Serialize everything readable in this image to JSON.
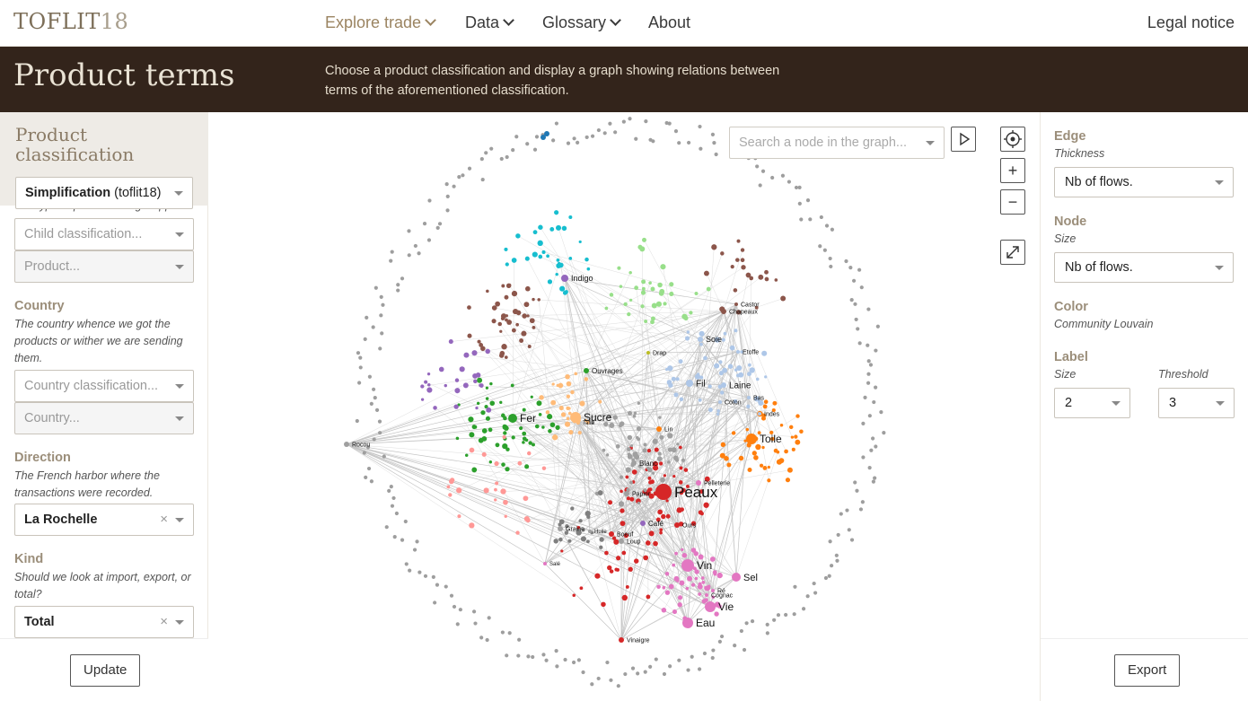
{
  "header": {
    "logo_text": "TOFLIT",
    "logo_num": "18",
    "nav": [
      {
        "label": "Explore trade",
        "dropdown": true,
        "active": true
      },
      {
        "label": "Data",
        "dropdown": true
      },
      {
        "label": "Glossary",
        "dropdown": true
      },
      {
        "label": "About",
        "dropdown": false
      }
    ],
    "legal": "Legal notice"
  },
  "banner": {
    "title": "Product terms",
    "description": "Choose a product classification and display a graph showing relations between terms of the aforementioned classification."
  },
  "left_panel": {
    "title": "Product classification",
    "classification_value": "Simplification",
    "classification_suffix": "(toflit18)",
    "product_hint": "The type of product being shipped.",
    "child_classification_placeholder": "Child classification...",
    "product_placeholder": "Product...",
    "country_label": "Country",
    "country_hint": "The country whence we got the products or wither we are sending them.",
    "country_classification_placeholder": "Country classification...",
    "country_placeholder": "Country...",
    "direction_label": "Direction",
    "direction_hint": "The French harbor where the transactions were recorded.",
    "direction_value": "La Rochelle",
    "kind_label": "Kind",
    "kind_hint": "Should we look at import, export, or total?",
    "kind_value": "Total",
    "clear_symbol": "×",
    "update_button": "Update"
  },
  "graph": {
    "search_placeholder": "Search a node in the graph...",
    "play_icon": "play-icon",
    "center_icon": "target-icon",
    "zoom_in": "+",
    "zoom_out": "−",
    "fullscreen_icon": "expand-icon",
    "colors": {
      "grey": "#a0a0a0",
      "red": "#d62728",
      "orange": "#ff7f0e",
      "green": "#2ca02c",
      "brown": "#8c564b",
      "pink": "#e377c2",
      "lightblue": "#aec7e8",
      "purple": "#9467bd",
      "cyan": "#17becf",
      "olive": "#bcbd22",
      "peach": "#ffbb78",
      "lightpink": "#ff9896",
      "darkgrey": "#7f7f7f",
      "lightgreen": "#98df8a",
      "blue": "#1f77b4"
    },
    "labels": [
      {
        "text": "Peaux",
        "big": true
      },
      {
        "text": "Toile"
      },
      {
        "text": "Fer"
      },
      {
        "text": "Sucre"
      },
      {
        "text": "Vin"
      },
      {
        "text": "Sel"
      },
      {
        "text": "Vie"
      },
      {
        "text": "Eau"
      },
      {
        "text": "Fil"
      },
      {
        "text": "Laine"
      },
      {
        "text": "Soie"
      },
      {
        "text": "Indigo"
      },
      {
        "text": "Ouvrages"
      },
      {
        "text": "Blanc"
      },
      {
        "text": "Papier"
      },
      {
        "text": "Café"
      },
      {
        "text": "Ours"
      },
      {
        "text": "Lin"
      },
      {
        "text": "Pelleterie"
      },
      {
        "text": "Boeuf"
      },
      {
        "text": "Huile"
      },
      {
        "text": "Graine"
      },
      {
        "text": "Loup"
      },
      {
        "text": "Salé"
      },
      {
        "text": "Vinaigre"
      },
      {
        "text": "Cognac"
      },
      {
        "text": "Ré"
      },
      {
        "text": "Castor"
      },
      {
        "text": "Chapeaux"
      },
      {
        "text": "Etoffe"
      },
      {
        "text": "Coton"
      },
      {
        "text": "Bas"
      },
      {
        "text": "Indes"
      },
      {
        "text": "Drap"
      },
      {
        "text": "Rocou"
      },
      {
        "text": "Tafia"
      }
    ]
  },
  "right_panel": {
    "edge_label": "Edge",
    "edge_sub": "Thickness",
    "edge_value": "Nb of flows.",
    "node_label": "Node",
    "node_sub": "Size",
    "node_value": "Nb of flows.",
    "color_label": "Color",
    "color_sub": "Community Louvain",
    "label_label": "Label",
    "label_size_sub": "Size",
    "label_size_value": "2",
    "label_threshold_sub": "Threshold",
    "label_threshold_value": "3",
    "export_button": "Export"
  }
}
